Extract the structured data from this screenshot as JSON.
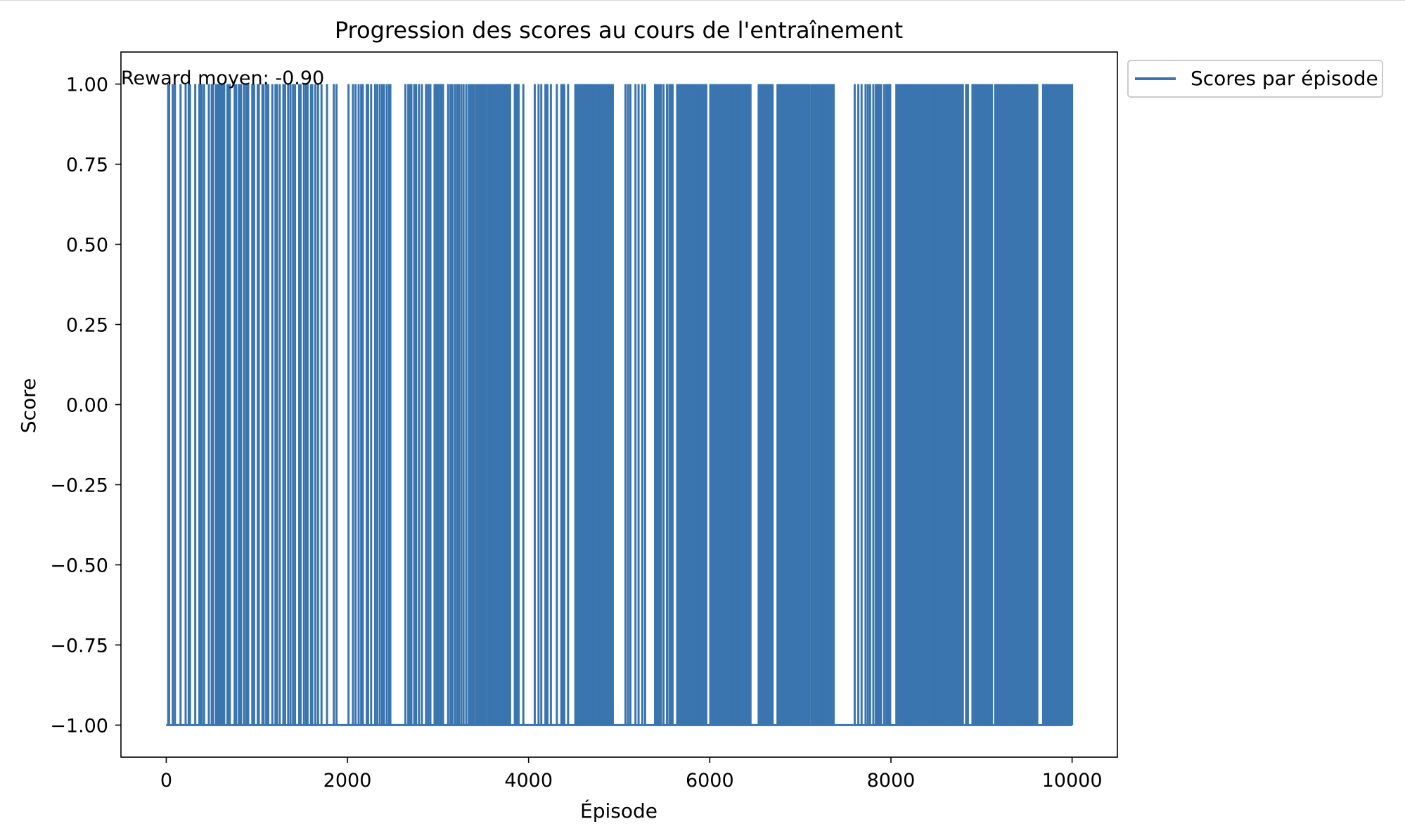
{
  "chart_data": {
    "type": "line",
    "title": "Progression des scores au cours de l'entraînement",
    "xlabel": "Épisode",
    "ylabel": "Score",
    "xlim": [
      -500,
      10500
    ],
    "ylim": [
      -1.1,
      1.1
    ],
    "xticks": [
      0,
      2000,
      4000,
      6000,
      8000,
      10000
    ],
    "xtick_labels": [
      "0",
      "2000",
      "4000",
      "6000",
      "8000",
      "10000"
    ],
    "yticks": [
      -1.0,
      -0.75,
      -0.5,
      -0.25,
      0.0,
      0.25,
      0.5,
      0.75,
      1.0
    ],
    "ytick_labels": [
      "−1.00",
      "−0.75",
      "−0.50",
      "−0.25",
      "0.00",
      "0.25",
      "0.50",
      "0.75",
      "1.00"
    ],
    "grid": false,
    "legend_position": "outside-top-right",
    "annotation": "Reward moyen: -0.90",
    "series": [
      {
        "name": "Scores par épisode",
        "color": "#3a75af",
        "x_range": [
          0,
          10000
        ],
        "values": [
          -1,
          1
        ],
        "win_episodes": [
          22,
          31,
          72,
          96,
          158,
          214,
          248,
          262,
          320,
          366,
          383,
          392,
          418,
          470,
          502,
          516,
          548,
          566,
          585,
          598,
          618,
          640,
          676,
          688,
          702,
          755,
          772,
          802,
          812,
          825,
          857,
          882,
          905,
          950,
          970,
          1010,
          1022,
          1062,
          1075,
          1104,
          1126,
          1171,
          1206,
          1222,
          1253,
          1293,
          1312,
          1346,
          1372,
          1400,
          1422,
          1468,
          1483,
          1520,
          1544,
          1560,
          1598,
          1612,
          1646,
          1676,
          1714,
          1775,
          1850,
          1880,
          2012,
          2061,
          2090,
          2124,
          2152,
          2170,
          2214,
          2228,
          2262,
          2306,
          2330,
          2358,
          2384,
          2404,
          2434,
          2460,
          2474,
          2640,
          2672,
          2689,
          2706,
          2738,
          2758,
          2790,
          2822,
          2868,
          2892,
          2916,
          2962,
          2980,
          3000,
          3012,
          3035,
          3056,
          3112,
          3138,
          3158,
          3186,
          3210,
          3230,
          3256,
          3282,
          3312,
          3340,
          3358,
          3378,
          3396,
          3420,
          3440,
          3454,
          3474,
          3494,
          3510,
          3528,
          3550,
          3568,
          3586,
          3602,
          3618,
          3636,
          3652,
          3670,
          3688,
          3704,
          3718,
          3734,
          3750,
          3766,
          3780,
          3796,
          3848,
          3862,
          3876,
          3890,
          3942,
          4068,
          4110,
          4140,
          4186,
          4208,
          4246,
          4312,
          4362,
          4378,
          4394,
          4436,
          4516,
          4530,
          4544,
          4558,
          4574,
          4590,
          4606,
          4622,
          4640,
          4660,
          4676,
          4690,
          4704,
          4720,
          4736,
          4752,
          4766,
          4782,
          4798,
          4814,
          4830,
          4844,
          4858,
          4872,
          4888,
          4902,
          4916,
          4930,
          5070,
          5098,
          5124,
          5180,
          5214,
          5256,
          5286,
          5396,
          5412,
          5428,
          5450,
          5462,
          5490,
          5528,
          5554,
          5562,
          5574,
          5590,
          5640,
          5658,
          5674,
          5690,
          5704,
          5720,
          5734,
          5748,
          5764,
          5778,
          5794,
          5810,
          5826,
          5842,
          5856,
          5870,
          5886,
          5902,
          5918,
          5934,
          5948,
          5962,
          6006,
          6020,
          6034,
          6048,
          6062,
          6078,
          6092,
          6108,
          6122,
          6136,
          6150,
          6164,
          6178,
          6194,
          6208,
          6222,
          6236,
          6250,
          6264,
          6278,
          6292,
          6306,
          6320,
          6334,
          6348,
          6362,
          6376,
          6390,
          6404,
          6418,
          6434,
          6450,
          6540,
          6556,
          6570,
          6586,
          6602,
          6618,
          6632,
          6648,
          6662,
          6678,
          6694,
          6748,
          6764,
          6780,
          6794,
          6808,
          6824,
          6838,
          6854,
          6868,
          6884,
          6898,
          6914,
          6930,
          6944,
          6958,
          6974,
          6990,
          7006,
          7020,
          7034,
          7050,
          7066,
          7080,
          7096,
          7120,
          7136,
          7150,
          7166,
          7182,
          7196,
          7212,
          7228,
          7244,
          7258,
          7274,
          7290,
          7306,
          7322,
          7338,
          7354,
          7368,
          7600,
          7640,
          7676,
          7720,
          7746,
          7770,
          7806,
          7834,
          7848,
          7862,
          7876,
          7890,
          7924,
          7948,
          7962,
          7976,
          7992,
          8060,
          8080,
          8100,
          8118,
          8136,
          8154,
          8170,
          8188,
          8206,
          8222,
          8240,
          8258,
          8276,
          8294,
          8312,
          8330,
          8348,
          8366,
          8384,
          8402,
          8420,
          8436,
          8454,
          8472,
          8490,
          8508,
          8526,
          8544,
          8562,
          8580,
          8598,
          8614,
          8632,
          8650,
          8668,
          8686,
          8704,
          8722,
          8740,
          8758,
          8776,
          8794,
          8830,
          8850,
          8900,
          8918,
          8936,
          8954,
          8972,
          8988,
          9006,
          9024,
          9042,
          9060,
          9078,
          9096,
          9114,
          9150,
          9166,
          9184,
          9202,
          9220,
          9238,
          9256,
          9274,
          9292,
          9310,
          9328,
          9346,
          9364,
          9382,
          9400,
          9418,
          9436,
          9454,
          9472,
          9490,
          9508,
          9526,
          9544,
          9562,
          9580,
          9598,
          9616,
          9680,
          9698,
          9716,
          9734,
          9752,
          9770,
          9788,
          9806,
          9824,
          9842,
          9860,
          9878,
          9896,
          9914,
          9932,
          9950,
          9968,
          9986,
          10000
        ]
      }
    ]
  }
}
